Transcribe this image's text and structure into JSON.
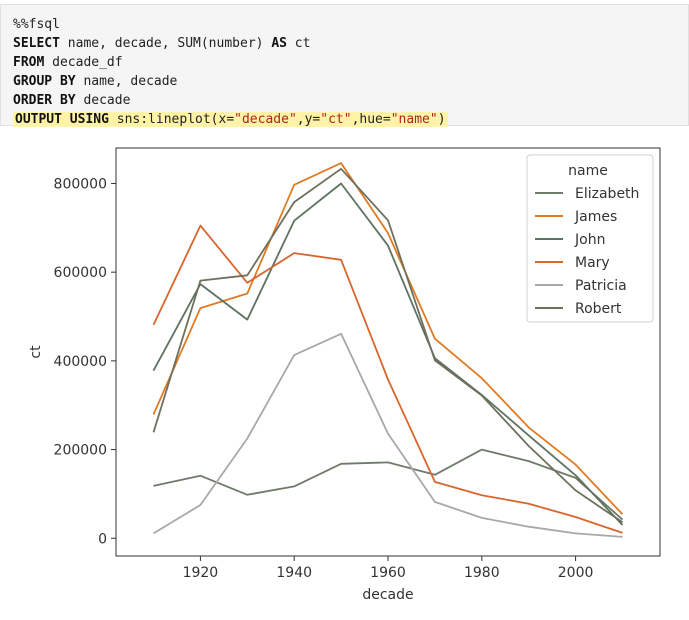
{
  "code_cell": {
    "lines": [
      [
        {
          "t": "%%fsql",
          "c": "plain"
        }
      ],
      [
        {
          "t": "SELECT",
          "c": "kw"
        },
        {
          "t": " name, decade, ",
          "c": "plain"
        },
        {
          "t": "SUM",
          "c": "fn"
        },
        {
          "t": "(number) ",
          "c": "plain"
        },
        {
          "t": "AS",
          "c": "kw"
        },
        {
          "t": " ct",
          "c": "plain"
        }
      ],
      [
        {
          "t": "FROM",
          "c": "kw"
        },
        {
          "t": " decade_df",
          "c": "plain"
        }
      ],
      [
        {
          "t": "GROUP BY",
          "c": "kw"
        },
        {
          "t": " name, decade",
          "c": "plain"
        }
      ],
      [
        {
          "t": "ORDER BY",
          "c": "kw"
        },
        {
          "t": " decade",
          "c": "plain"
        }
      ],
      [
        {
          "t": "OUTPUT USING",
          "c": "kw"
        },
        {
          "t": " sns:lineplot(x=",
          "c": "plain"
        },
        {
          "t": "\"decade\"",
          "c": "str"
        },
        {
          "t": ",y=",
          "c": "plain"
        },
        {
          "t": "\"ct\"",
          "c": "str"
        },
        {
          "t": ",hue=",
          "c": "plain"
        },
        {
          "t": "\"name\"",
          "c": "str"
        },
        {
          "t": ")",
          "c": "plain"
        }
      ]
    ],
    "highlight_line": 5,
    "highlight_color": "#fff3a8"
  },
  "chart_data": {
    "type": "line",
    "xlabel": "decade",
    "ylabel": "ct",
    "x": [
      1910,
      1920,
      1930,
      1940,
      1950,
      1960,
      1970,
      1980,
      1990,
      2000,
      2010
    ],
    "xlim": [
      1902,
      2018
    ],
    "ylim": [
      -40000,
      880000
    ],
    "xticks": [
      1920,
      1940,
      1960,
      1980,
      2000
    ],
    "xtick_labels": [
      "1920",
      "1940",
      "1960",
      "1980",
      "2000"
    ],
    "yticks": [
      0,
      200000,
      400000,
      600000,
      800000
    ],
    "ytick_labels": [
      "0",
      "200000",
      "400000",
      "600000",
      "800000"
    ],
    "grid": false,
    "legend": {
      "title": "name",
      "placement": "top-right"
    },
    "series": [
      {
        "name": "Elizabeth",
        "color": "#6f7a6b",
        "values": [
          118000,
          141000,
          98000,
          117000,
          168000,
          171000,
          143000,
          200000,
          174000,
          136000,
          42000
        ]
      },
      {
        "name": "James",
        "color": "#e07b24",
        "values": [
          279000,
          519000,
          552000,
          797000,
          846000,
          688000,
          450000,
          361000,
          250000,
          166000,
          54000
        ]
      },
      {
        "name": "John",
        "color": "#5e7260",
        "values": [
          378000,
          573000,
          493000,
          716000,
          800000,
          660000,
          406000,
          323000,
          232000,
          142000,
          30000
        ]
      },
      {
        "name": "Mary",
        "color": "#d7662e",
        "values": [
          481000,
          705000,
          576000,
          643000,
          628000,
          358000,
          127000,
          97000,
          78000,
          48000,
          12000
        ]
      },
      {
        "name": "Patricia",
        "color": "#a8a8a8",
        "values": [
          11000,
          75000,
          225000,
          413000,
          461000,
          236000,
          82000,
          46000,
          26000,
          11000,
          3000
        ]
      },
      {
        "name": "Robert",
        "color": "#6e705e",
        "values": [
          239000,
          581000,
          593000,
          758000,
          833000,
          717000,
          401000,
          322000,
          208000,
          108000,
          36000
        ]
      }
    ]
  }
}
